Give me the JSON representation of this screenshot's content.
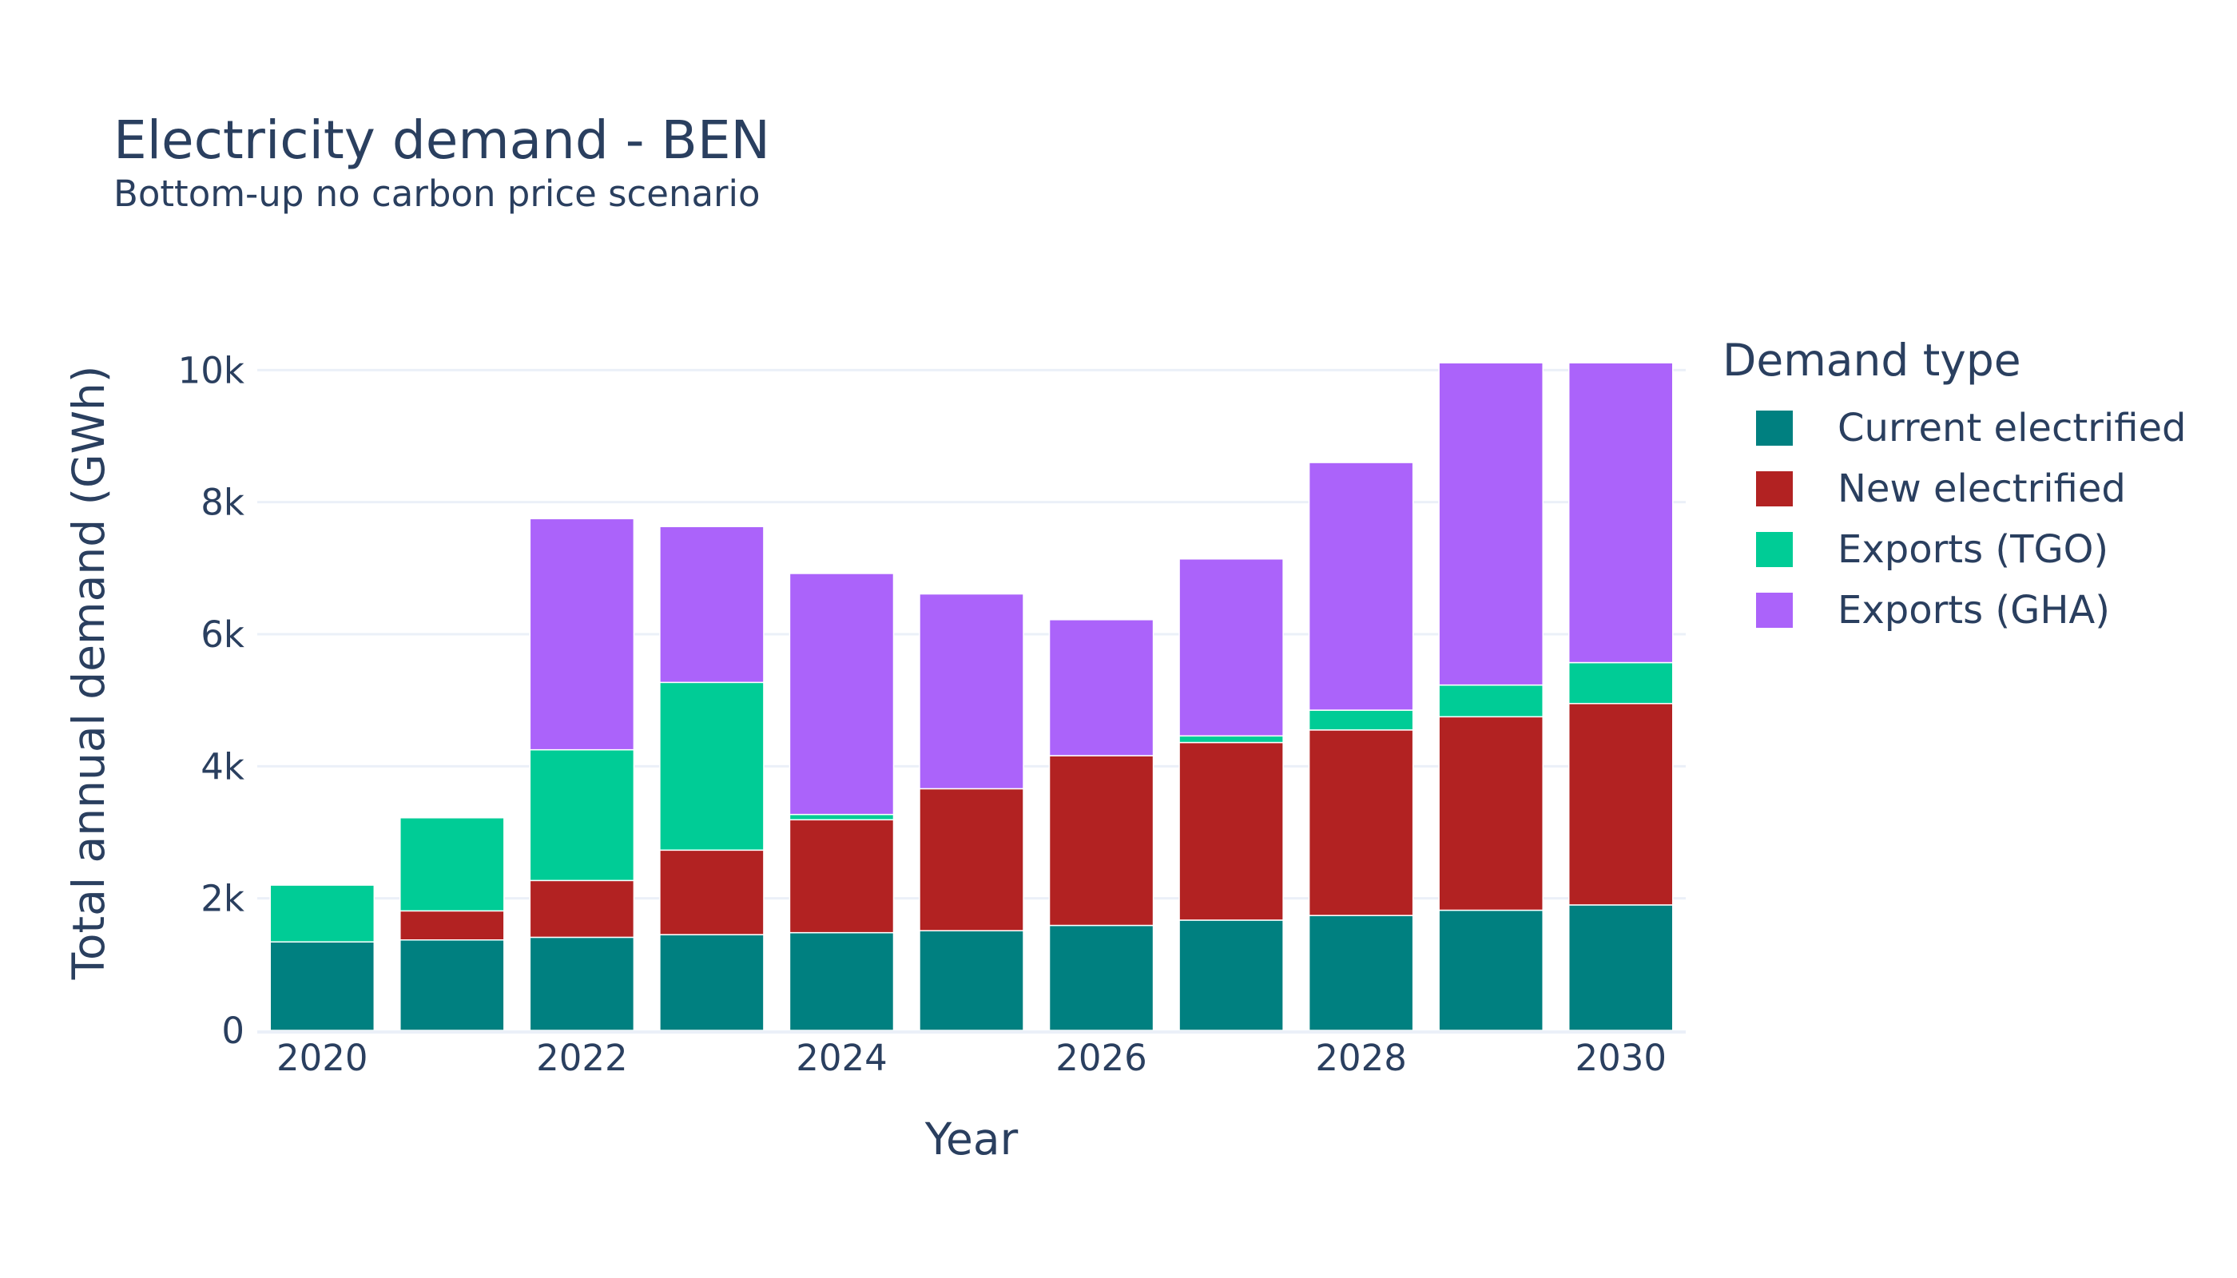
{
  "chart_data": {
    "type": "bar",
    "stacked": true,
    "title": "Electricity demand - BEN",
    "subtitle": "Bottom-up no carbon price scenario",
    "xlabel": "Year",
    "ylabel": "Total annual demand (GWh)",
    "ylim": [
      0,
      10500
    ],
    "y_ticks": [
      0,
      2000,
      4000,
      6000,
      8000,
      10000
    ],
    "y_tick_labels": [
      "0",
      "2k",
      "4k",
      "6k",
      "8k",
      "10k"
    ],
    "x_tick_labels": [
      "2020",
      "2022",
      "2024",
      "2026",
      "2028",
      "2030"
    ],
    "categories": [
      2020,
      2021,
      2022,
      2023,
      2024,
      2025,
      2026,
      2027,
      2028,
      2029,
      2030
    ],
    "grid": true,
    "legend_title": "Demand type",
    "legend_position": "top-right",
    "series": [
      {
        "name": "Current electrified",
        "color": "#008080",
        "values": [
          1340,
          1370,
          1410,
          1450,
          1480,
          1510,
          1590,
          1670,
          1740,
          1820,
          1900
        ]
      },
      {
        "name": "New electrified",
        "color": "#b22222",
        "values": [
          0,
          440,
          860,
          1280,
          1710,
          2150,
          2570,
          2690,
          2810,
          2930,
          3050
        ]
      },
      {
        "name": "Exports (TGO)",
        "color": "#00cc96",
        "values": [
          860,
          1410,
          1980,
          2540,
          80,
          0,
          0,
          100,
          300,
          480,
          620
        ]
      },
      {
        "name": "Exports (GHA)",
        "color": "#ab63fa",
        "values": [
          0,
          0,
          3500,
          2360,
          3650,
          2950,
          2060,
          2680,
          3750,
          4880,
          4540
        ]
      }
    ]
  }
}
